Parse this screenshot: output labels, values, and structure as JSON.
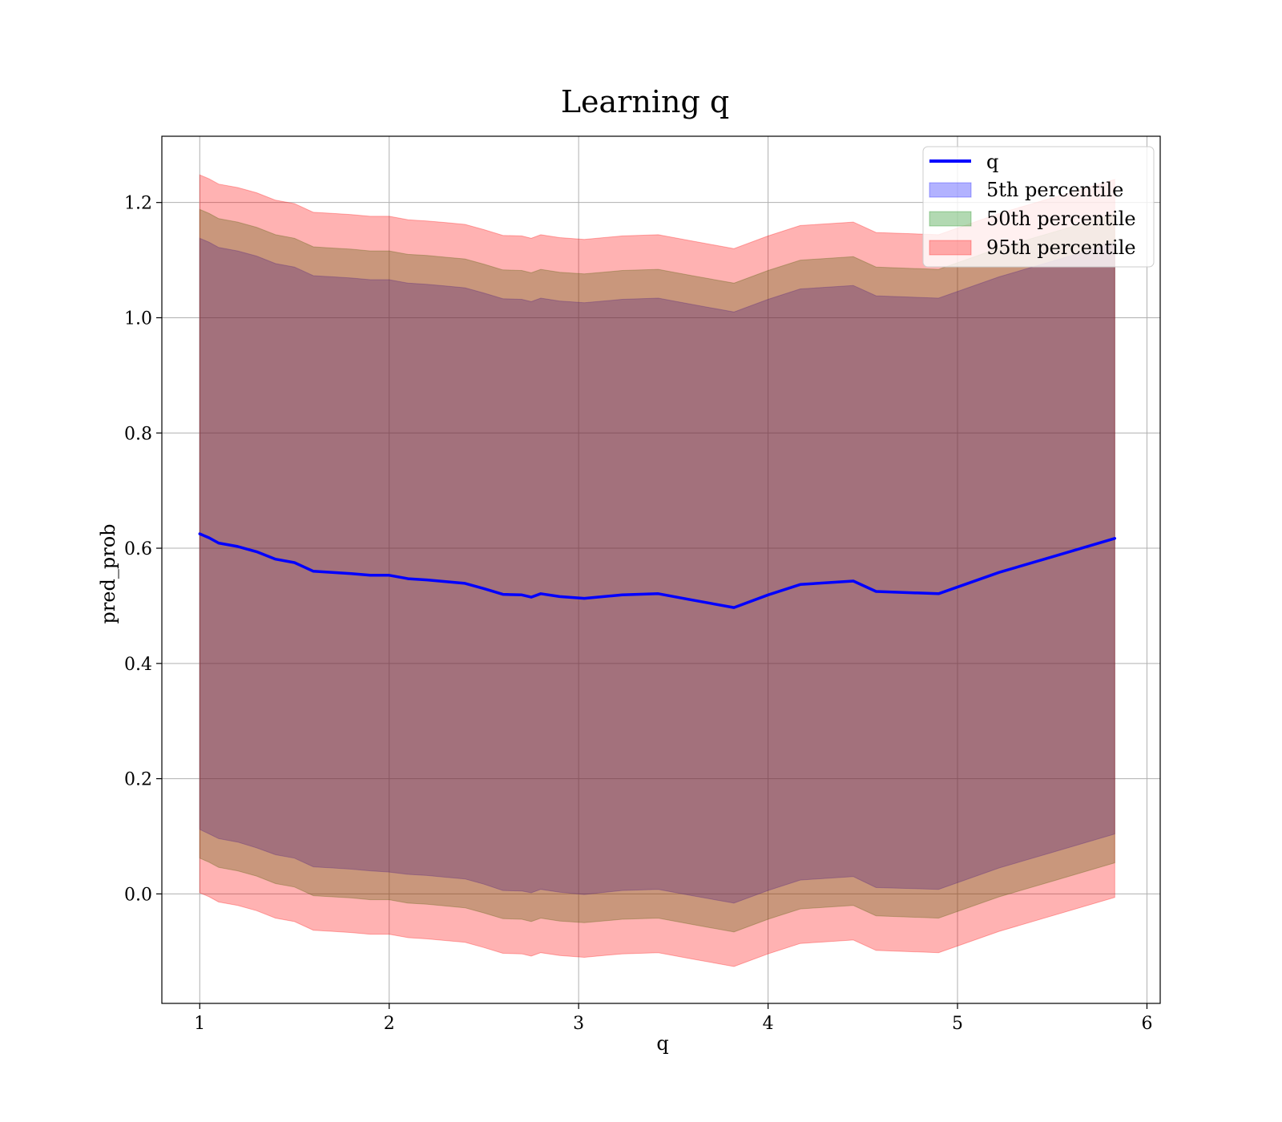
{
  "chart_data": {
    "type": "line",
    "title": "Learning q",
    "xlabel": "q",
    "ylabel": "pred_prob",
    "xlim": [
      0.8,
      6.07
    ],
    "ylim": [
      -0.19,
      1.315
    ],
    "xticks": [
      1,
      2,
      3,
      4,
      5,
      6
    ],
    "yticks": [
      0.0,
      0.2,
      0.4,
      0.6,
      0.8,
      1.0,
      1.2
    ],
    "xtick_labels": [
      "1",
      "2",
      "3",
      "4",
      "5",
      "6"
    ],
    "ytick_labels": [
      "0.0",
      "0.2",
      "0.4",
      "0.6",
      "0.8",
      "1.0",
      "1.2"
    ],
    "grid": true,
    "legend_position": "top-right",
    "x": [
      1.0,
      1.05,
      1.1,
      1.2,
      1.3,
      1.4,
      1.5,
      1.6,
      1.7,
      1.8,
      1.9,
      2.0,
      2.1,
      2.2,
      2.3,
      2.4,
      2.5,
      2.6,
      2.7,
      2.75,
      2.8,
      2.9,
      3.03,
      3.23,
      3.42,
      3.6,
      3.82,
      4.0,
      4.17,
      4.45,
      4.57,
      4.9,
      5.22,
      5.5,
      5.83
    ],
    "line": [
      0.625,
      0.618,
      0.609,
      0.603,
      0.594,
      0.581,
      0.575,
      0.56,
      0.558,
      0.556,
      0.553,
      0.553,
      0.547,
      0.545,
      0.542,
      0.539,
      0.53,
      0.52,
      0.519,
      0.515,
      0.521,
      0.516,
      0.513,
      0.519,
      0.521,
      0.51,
      0.497,
      0.519,
      0.537,
      0.543,
      0.525,
      0.521,
      0.558,
      0.585,
      0.617
    ],
    "series": [
      {
        "name": "q",
        "color": "#0000ff",
        "kind": "line"
      },
      {
        "name": "5th percentile",
        "color": "#0000ff",
        "alpha": 0.3,
        "kind": "band",
        "lower": [
          0.112,
          0.104,
          0.096,
          0.09,
          0.08,
          0.068,
          0.062,
          0.047,
          0.045,
          0.043,
          0.04,
          0.038,
          0.034,
          0.032,
          0.029,
          0.026,
          0.017,
          0.006,
          0.005,
          0.002,
          0.008,
          0.003,
          -0.001,
          0.006,
          0.008,
          -0.003,
          -0.016,
          0.006,
          0.024,
          0.03,
          0.011,
          0.008,
          0.045,
          0.072,
          0.104
        ],
        "upper": [
          1.138,
          1.131,
          1.122,
          1.116,
          1.107,
          1.094,
          1.088,
          1.073,
          1.071,
          1.069,
          1.066,
          1.066,
          1.06,
          1.058,
          1.055,
          1.052,
          1.043,
          1.033,
          1.032,
          1.028,
          1.034,
          1.029,
          1.026,
          1.032,
          1.034,
          1.023,
          1.01,
          1.032,
          1.05,
          1.056,
          1.038,
          1.034,
          1.071,
          1.098,
          1.13
        ]
      },
      {
        "name": "50th percentile",
        "color": "#008000",
        "alpha": 0.3,
        "kind": "band",
        "lower": [
          0.062,
          0.055,
          0.046,
          0.04,
          0.031,
          0.018,
          0.012,
          -0.003,
          -0.005,
          -0.007,
          -0.01,
          -0.01,
          -0.016,
          -0.018,
          -0.021,
          -0.024,
          -0.033,
          -0.043,
          -0.044,
          -0.048,
          -0.042,
          -0.047,
          -0.05,
          -0.044,
          -0.042,
          -0.053,
          -0.066,
          -0.044,
          -0.026,
          -0.02,
          -0.038,
          -0.042,
          -0.005,
          0.022,
          0.054
        ],
        "upper": [
          1.188,
          1.181,
          1.172,
          1.166,
          1.157,
          1.144,
          1.138,
          1.123,
          1.121,
          1.119,
          1.116,
          1.116,
          1.11,
          1.108,
          1.105,
          1.102,
          1.093,
          1.083,
          1.082,
          1.078,
          1.084,
          1.079,
          1.076,
          1.082,
          1.084,
          1.073,
          1.06,
          1.082,
          1.1,
          1.106,
          1.088,
          1.084,
          1.121,
          1.148,
          1.18
        ]
      },
      {
        "name": "95th percentile",
        "color": "#ff0000",
        "alpha": 0.3,
        "kind": "band",
        "lower": [
          0.002,
          -0.005,
          -0.014,
          -0.02,
          -0.029,
          -0.042,
          -0.048,
          -0.063,
          -0.065,
          -0.067,
          -0.07,
          -0.07,
          -0.076,
          -0.078,
          -0.081,
          -0.084,
          -0.093,
          -0.103,
          -0.104,
          -0.108,
          -0.102,
          -0.107,
          -0.11,
          -0.104,
          -0.102,
          -0.113,
          -0.126,
          -0.104,
          -0.086,
          -0.08,
          -0.098,
          -0.102,
          -0.065,
          -0.038,
          -0.006
        ],
        "upper": [
          1.248,
          1.241,
          1.232,
          1.226,
          1.217,
          1.204,
          1.198,
          1.183,
          1.181,
          1.179,
          1.176,
          1.176,
          1.17,
          1.168,
          1.165,
          1.162,
          1.153,
          1.143,
          1.142,
          1.138,
          1.144,
          1.139,
          1.136,
          1.142,
          1.144,
          1.133,
          1.12,
          1.142,
          1.16,
          1.166,
          1.148,
          1.144,
          1.181,
          1.208,
          1.24
        ]
      }
    ]
  }
}
